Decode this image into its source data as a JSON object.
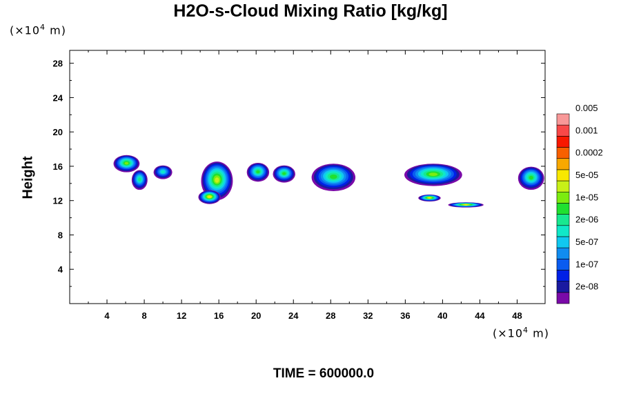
{
  "chart_data": {
    "type": "heatmap",
    "title": "H2O-s-Cloud Mixing Ratio [kg/kg]",
    "xlabel": "",
    "ylabel": "Height",
    "x_unit": "(×10⁴ m)",
    "y_unit": "(×10⁴ m)",
    "xlim": [
      0,
      51
    ],
    "ylim": [
      0,
      29.5
    ],
    "x_ticks": [
      4,
      8,
      12,
      16,
      20,
      24,
      28,
      32,
      36,
      40,
      44,
      48
    ],
    "y_ticks": [
      4,
      8,
      12,
      16,
      20,
      24,
      28
    ],
    "grid": false,
    "colorbar": {
      "placement": "right",
      "levels": [
        "2e-08",
        "1e-07",
        "5e-07",
        "2e-06",
        "1e-05",
        "5e-05",
        "0.0002",
        "0.001",
        "0.005"
      ],
      "colors": [
        "#7a0aa8",
        "#1a1aa0",
        "#0020e6",
        "#0a5cf0",
        "#108cf0",
        "#10c8f0",
        "#10e8c8",
        "#18e890",
        "#20e030",
        "#7cec10",
        "#c8f018",
        "#f8e800",
        "#f8a800",
        "#f86000",
        "#f81800",
        "#f84848",
        "#f89898"
      ]
    },
    "clouds": [
      {
        "x": 6.1,
        "y": 16.3,
        "w": 2.8,
        "h": 2.0,
        "peak": 10
      },
      {
        "x": 7.5,
        "y": 14.4,
        "w": 1.7,
        "h": 2.3,
        "peak": 8
      },
      {
        "x": 10.0,
        "y": 15.3,
        "w": 2.0,
        "h": 1.6,
        "peak": 7
      },
      {
        "x": 15.8,
        "y": 14.3,
        "w": 3.4,
        "h": 4.5,
        "peak": 11
      },
      {
        "x": 15.0,
        "y": 12.4,
        "w": 2.4,
        "h": 1.6,
        "peak": 12
      },
      {
        "x": 20.2,
        "y": 15.3,
        "w": 2.4,
        "h": 2.2,
        "peak": 9
      },
      {
        "x": 23.0,
        "y": 15.1,
        "w": 2.4,
        "h": 2.0,
        "peak": 9
      },
      {
        "x": 28.3,
        "y": 14.7,
        "w": 4.7,
        "h": 3.2,
        "peak": 9
      },
      {
        "x": 39.0,
        "y": 15.0,
        "w": 6.2,
        "h": 2.6,
        "peak": 10
      },
      {
        "x": 38.6,
        "y": 12.3,
        "w": 2.4,
        "h": 0.8,
        "peak": 12
      },
      {
        "x": 42.5,
        "y": 11.5,
        "w": 3.8,
        "h": 0.6,
        "peak": 12
      },
      {
        "x": 49.5,
        "y": 14.6,
        "w": 2.8,
        "h": 2.7,
        "peak": 9
      }
    ]
  },
  "footer": "TIME = 600000.0"
}
